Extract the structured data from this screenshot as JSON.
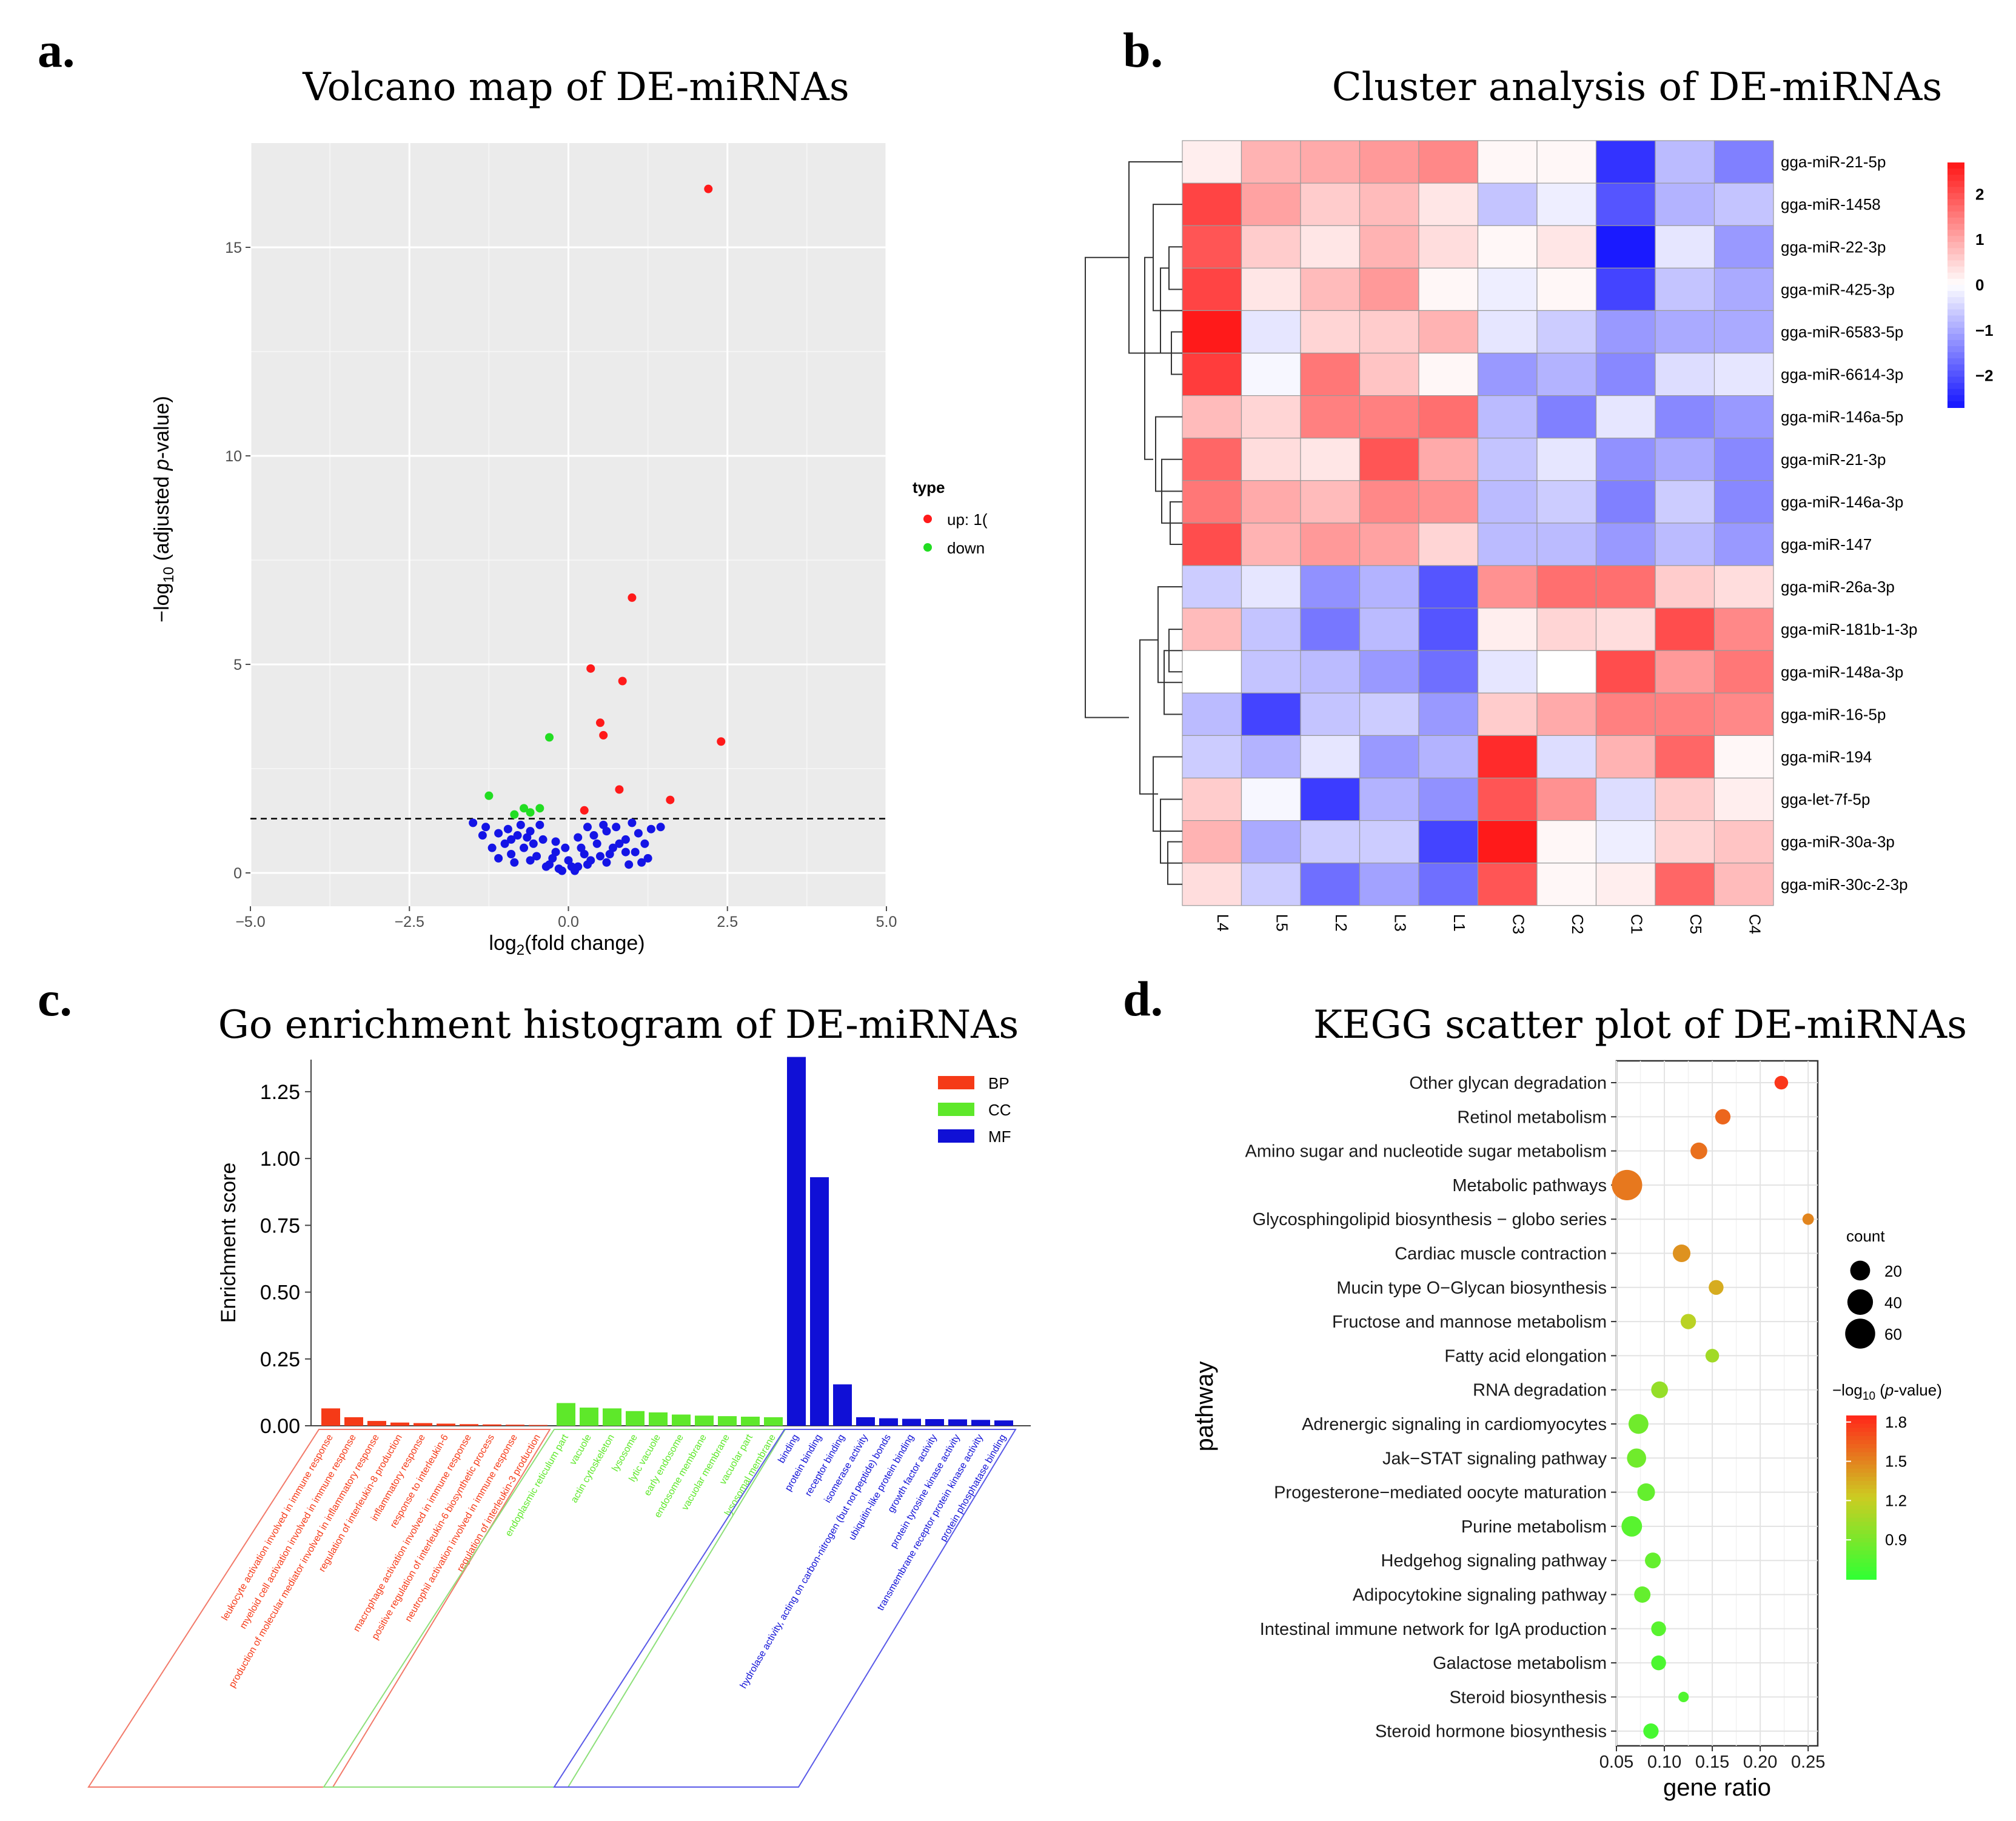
{
  "colors": {
    "up": "#ff1a1a",
    "down": "#22dd22",
    "ns": "#1414e6",
    "BP": "#f53a17",
    "CC": "#5ee82a",
    "MF": "#1010d6",
    "grey_panel": "#ebebeb",
    "heat_low": "#1a1aff",
    "heat_mid": "#ffffff",
    "heat_high": "#ff1a1a",
    "kegg_low": "#33ff33",
    "kegg_mid": "#cccc22",
    "kegg_high": "#ff2a1a"
  },
  "panels": {
    "a": {
      "letter": "a.",
      "title": "Volcano map of DE-miRNAs"
    },
    "b": {
      "letter": "b.",
      "title": "Cluster analysis of DE-miRNAs"
    },
    "c": {
      "letter": "c.",
      "title": "Go enrichment histogram of DE-miRNAs"
    },
    "d": {
      "letter": "d.",
      "title": "KEGG scatter plot of DE-miRNAs"
    }
  },
  "chart_data": [
    {
      "id": "volcano",
      "type": "scatter",
      "title": "Volcano map of DE-miRNAs",
      "xlabel": "log2(fold change)",
      "ylabel": "−log10 (adjusted p-value)",
      "xlim": [
        -5,
        5
      ],
      "ylim": [
        -0.8,
        17.5
      ],
      "xticks": [
        -5.0,
        -2.5,
        0.0,
        2.5,
        5.0
      ],
      "xtick_labels": [
        "−5.0",
        "−2.5",
        "0.0",
        "2.5",
        "5.0"
      ],
      "yticks": [
        0,
        5,
        10,
        15
      ],
      "threshold": 1.3,
      "legend": {
        "title": "type",
        "entries": [
          "up: 1(",
          "down"
        ],
        "position": "right"
      },
      "series": [
        {
          "name": "up",
          "points": [
            [
              2.2,
              16.4
            ],
            [
              1.0,
              6.6
            ],
            [
              0.35,
              4.9
            ],
            [
              0.85,
              4.6
            ],
            [
              0.5,
              3.6
            ],
            [
              0.55,
              3.3
            ],
            [
              2.4,
              3.15
            ],
            [
              0.8,
              2.0
            ],
            [
              1.6,
              1.75
            ],
            [
              0.25,
              1.5
            ]
          ]
        },
        {
          "name": "down",
          "points": [
            [
              -0.3,
              3.25
            ],
            [
              -1.25,
              1.85
            ],
            [
              -0.7,
              1.55
            ],
            [
              -0.45,
              1.55
            ],
            [
              -0.85,
              1.4
            ],
            [
              -0.6,
              1.45
            ]
          ]
        },
        {
          "name": "ns",
          "points": [
            [
              -1.5,
              1.2
            ],
            [
              -1.3,
              1.1
            ],
            [
              -1.1,
              0.95
            ],
            [
              -0.9,
              0.8
            ],
            [
              -0.7,
              0.6
            ],
            [
              -0.5,
              0.4
            ],
            [
              -0.3,
              0.2
            ],
            [
              -0.1,
              0.05
            ],
            [
              0.1,
              0.05
            ],
            [
              0.3,
              0.2
            ],
            [
              0.5,
              0.4
            ],
            [
              0.7,
              0.6
            ],
            [
              0.9,
              0.8
            ],
            [
              1.1,
              0.95
            ],
            [
              1.3,
              1.05
            ],
            [
              1.45,
              1.1
            ],
            [
              -1.0,
              0.7
            ],
            [
              -0.8,
              0.9
            ],
            [
              -0.6,
              1.0
            ],
            [
              -0.4,
              0.8
            ],
            [
              -0.2,
              0.5
            ],
            [
              0.0,
              0.3
            ],
            [
              0.2,
              0.6
            ],
            [
              0.4,
              0.9
            ],
            [
              0.6,
              1.0
            ],
            [
              0.8,
              0.7
            ],
            [
              1.0,
              1.2
            ],
            [
              -1.2,
              0.6
            ],
            [
              -0.9,
              0.45
            ],
            [
              -0.6,
              0.3
            ],
            [
              -0.35,
              0.15
            ],
            [
              -0.15,
              0.1
            ],
            [
              0.15,
              0.15
            ],
            [
              0.35,
              0.3
            ],
            [
              0.6,
              0.25
            ],
            [
              0.9,
              0.5
            ],
            [
              1.2,
              0.7
            ],
            [
              -0.75,
              1.15
            ],
            [
              -0.55,
              0.7
            ],
            [
              -0.25,
              0.35
            ],
            [
              0.05,
              0.15
            ],
            [
              0.25,
              0.45
            ],
            [
              0.45,
              0.7
            ],
            [
              0.75,
              1.1
            ],
            [
              1.05,
              0.5
            ],
            [
              -1.35,
              0.9
            ],
            [
              -0.95,
              1.05
            ],
            [
              -0.45,
              1.15
            ],
            [
              0.55,
              1.15
            ],
            [
              1.25,
              0.35
            ],
            [
              -0.65,
              0.85
            ],
            [
              -0.2,
              0.75
            ],
            [
              0.15,
              0.85
            ],
            [
              0.65,
              0.45
            ],
            [
              -0.05,
              0.6
            ],
            [
              0.3,
              1.1
            ],
            [
              -0.85,
              0.25
            ],
            [
              0.95,
              0.2
            ],
            [
              -1.1,
              0.35
            ],
            [
              1.15,
              0.25
            ]
          ]
        }
      ]
    },
    {
      "id": "heatmap",
      "type": "heatmap",
      "title": "Cluster analysis of DE-miRNAs",
      "columns": [
        "L4",
        "L5",
        "L2",
        "L3",
        "L1",
        "C3",
        "C2",
        "C1",
        "C5",
        "C4"
      ],
      "rows": [
        "gga-miR-21-5p",
        "gga-miR-1458",
        "gga-miR-22-3p",
        "gga-miR-425-3p",
        "gga-miR-6583-5p",
        "gga-miR-6614-3p",
        "gga-miR-146a-5p",
        "gga-miR-21-3p",
        "gga-miR-146a-3p",
        "gga-miR-147",
        "gga-miR-26a-3p",
        "gga-miR-181b-1-3p",
        "gga-miR-148a-3p",
        "gga-miR-16-5p",
        "gga-miR-194",
        "gga-let-7f-5p",
        "gga-miR-30a-3p",
        "gga-miR-30c-2-3p"
      ],
      "values": [
        [
          0.2,
          0.9,
          1.0,
          1.2,
          1.4,
          0.1,
          0.1,
          -2.4,
          -0.8,
          -1.5
        ],
        [
          2.2,
          1.1,
          0.6,
          0.8,
          0.3,
          -0.7,
          -0.2,
          -2.0,
          -0.9,
          -0.7
        ],
        [
          2.0,
          0.6,
          0.3,
          0.9,
          0.4,
          0.1,
          0.3,
          -2.8,
          -0.3,
          -1.2
        ],
        [
          2.2,
          0.3,
          0.8,
          1.2,
          0.1,
          -0.2,
          0.1,
          -2.2,
          -0.7,
          -1.0
        ],
        [
          2.8,
          -0.3,
          0.5,
          0.6,
          0.9,
          -0.3,
          -0.6,
          -1.2,
          -1.0,
          -1.0
        ],
        [
          2.3,
          -0.1,
          1.6,
          0.7,
          0.1,
          -1.2,
          -0.9,
          -1.4,
          -0.4,
          -0.3
        ],
        [
          0.8,
          0.5,
          1.5,
          1.5,
          1.7,
          -0.8,
          -1.5,
          -0.3,
          -1.4,
          -1.2
        ],
        [
          1.8,
          0.4,
          0.3,
          2.0,
          1.0,
          -0.7,
          -0.3,
          -1.3,
          -1.0,
          -1.4
        ],
        [
          1.6,
          1.0,
          0.8,
          1.4,
          1.3,
          -0.8,
          -0.6,
          -1.5,
          -0.6,
          -1.4
        ],
        [
          2.1,
          0.9,
          1.2,
          1.1,
          0.5,
          -0.8,
          -0.8,
          -1.2,
          -0.8,
          -1.2
        ],
        [
          -0.6,
          -0.3,
          -1.3,
          -0.9,
          -2.0,
          1.3,
          1.7,
          1.7,
          0.6,
          0.4
        ],
        [
          0.8,
          -0.7,
          -1.6,
          -0.8,
          -2.0,
          0.2,
          0.5,
          0.4,
          2.1,
          1.4
        ],
        [
          0.0,
          -0.7,
          -0.8,
          -1.2,
          -1.7,
          -0.3,
          0.0,
          2.1,
          1.2,
          1.6
        ],
        [
          -0.8,
          -2.2,
          -0.7,
          -0.6,
          -1.2,
          0.6,
          1.0,
          1.5,
          1.5,
          1.4
        ],
        [
          -0.6,
          -0.9,
          -0.3,
          -1.2,
          -0.9,
          2.5,
          -0.4,
          0.9,
          1.8,
          0.1
        ],
        [
          0.6,
          -0.1,
          -2.3,
          -0.9,
          -1.3,
          2.0,
          1.3,
          -0.4,
          0.6,
          0.2
        ],
        [
          0.9,
          -1.0,
          -0.6,
          -0.6,
          -2.2,
          2.7,
          0.1,
          -0.2,
          0.5,
          0.7
        ],
        [
          0.4,
          -0.6,
          -1.7,
          -1.1,
          -1.7,
          2.0,
          0.1,
          0.2,
          1.8,
          0.8
        ]
      ],
      "scale": {
        "range": [
          -2.7,
          2.7
        ],
        "ticks": [
          2,
          1,
          0,
          -1,
          -2
        ],
        "tick_labels": [
          "2",
          "1",
          "0",
          "−1",
          "−2"
        ]
      }
    },
    {
      "id": "go",
      "type": "bar",
      "title": "Go enrichment histogram of DE-miRNAs",
      "ylabel": "Enrichment score",
      "ylim": [
        0,
        1.37
      ],
      "yticks": [
        0.0,
        0.25,
        0.5,
        0.75,
        1.0,
        1.25
      ],
      "ytick_labels": [
        "0.00",
        "0.25",
        "0.50",
        "0.75",
        "1.00",
        "1.25"
      ],
      "legend": [
        "BP",
        "CC",
        "MF"
      ],
      "groups": [
        {
          "name": "BP",
          "categories": [
            "leukocyte activation involved in immune response",
            "myeloid cell activation involved in immune response",
            "production of molecular mediator involved in inflammatory response",
            "regulation of interleukin-8 production",
            "inflammatory response",
            "response to interleukin-6",
            "macrophage activation involved in immune response",
            "positive regulation of interleukin-6 biosynthetic process",
            "neutrophil activation involved in immune response",
            "regulation of interleukin-3 production"
          ],
          "values": [
            0.065,
            0.032,
            0.018,
            0.012,
            0.01,
            0.008,
            0.006,
            0.005,
            0.004,
            0.003
          ]
        },
        {
          "name": "CC",
          "categories": [
            "endoplasmic reticulum part",
            "vacuole",
            "actin cytoskeleton",
            "lysosome",
            "lytic vacuole",
            "early endosome",
            "endosome membrane",
            "vacuolar membrane",
            "vacuolar part",
            "lysosomal membrane"
          ],
          "values": [
            0.085,
            0.068,
            0.065,
            0.055,
            0.05,
            0.042,
            0.038,
            0.036,
            0.034,
            0.032
          ]
        },
        {
          "name": "MF",
          "categories": [
            "binding",
            "protein binding",
            "receptor binding",
            "isomerase activity",
            "hydrolase activity, acting on carbon-nitrogen (but not peptide) bonds",
            "ubiquitin-like protein binding",
            "growth factor activity",
            "protein tyrosine kinase activity",
            "transmembrane receptor protein kinase activity",
            "protein phosphatase binding"
          ],
          "values": [
            1.38,
            0.93,
            0.155,
            0.032,
            0.028,
            0.026,
            0.025,
            0.024,
            0.022,
            0.02
          ]
        }
      ]
    },
    {
      "id": "kegg",
      "type": "scatter",
      "title": "KEGG scatter plot of DE-miRNAs",
      "xlabel": "gene ratio",
      "ylabel": "pathway",
      "xlim": [
        0.05,
        0.26
      ],
      "xticks": [
        0.05,
        0.1,
        0.15,
        0.2,
        0.25
      ],
      "xtick_labels": [
        "0.05",
        "0.10",
        "0.15",
        "0.20",
        "0.25"
      ],
      "pathways": [
        "Other glycan degradation",
        "Retinol metabolism",
        "Amino sugar and nucleotide sugar metabolism",
        "Metabolic pathways",
        "Glycosphingolipid biosynthesis − globo series",
        "Cardiac muscle contraction",
        "Mucin type O−Glycan biosynthesis",
        "Fructose and mannose metabolism",
        "Fatty acid elongation",
        "RNA degradation",
        "Adrenergic signaling in cardiomyocytes",
        "Jak−STAT signaling pathway",
        "Progesterone−mediated oocyte maturation",
        "Purine metabolism",
        "Hedgehog signaling pathway",
        "Adipocytokine signaling pathway",
        "Intestinal immune network for IgA production",
        "Galactose metabolism",
        "Steroid biosynthesis",
        "Steroid hormone biosynthesis"
      ],
      "gene_ratio": [
        0.222,
        0.161,
        0.136,
        0.061,
        0.25,
        0.118,
        0.154,
        0.125,
        0.15,
        0.095,
        0.073,
        0.071,
        0.081,
        0.066,
        0.088,
        0.077,
        0.094,
        0.094,
        0.12,
        0.086
      ],
      "count": [
        6,
        9,
        12,
        62,
        3,
        14,
        8,
        9,
        6,
        12,
        20,
        18,
        14,
        22,
        10,
        11,
        8,
        8,
        2,
        9
      ],
      "neg_log10_p": [
        1.8,
        1.62,
        1.58,
        1.55,
        1.5,
        1.45,
        1.35,
        1.15,
        1.05,
        1.0,
        0.85,
        0.85,
        0.8,
        0.75,
        0.8,
        0.8,
        0.75,
        0.7,
        0.72,
        0.68
      ],
      "size_legend": {
        "title": "count",
        "values": [
          20,
          40,
          60
        ],
        "labels": [
          "20",
          "40",
          "60"
        ]
      },
      "color_legend": {
        "title": "−log10 (p-value)",
        "range": [
          0.6,
          1.85
        ],
        "ticks": [
          1.8,
          1.5,
          1.2,
          0.9
        ],
        "tick_labels": [
          "1.8",
          "1.5",
          "1.2",
          "0.9"
        ]
      }
    }
  ],
  "text": {
    "volcano_xlabel_main": "log",
    "volcano_xlabel_sub": "2",
    "volcano_xlabel_rest": "(fold change)",
    "volcano_ylabel_a": "−log",
    "volcano_ylabel_sub": "10",
    "volcano_ylabel_b": " (adjusted ",
    "volcano_ylabel_p": "p",
    "volcano_ylabel_c": "-value)",
    "kegg_cl_a": "−log",
    "kegg_cl_sub": "10",
    "kegg_cl_b": " (",
    "kegg_cl_p": "p",
    "kegg_cl_c": "-value)"
  }
}
